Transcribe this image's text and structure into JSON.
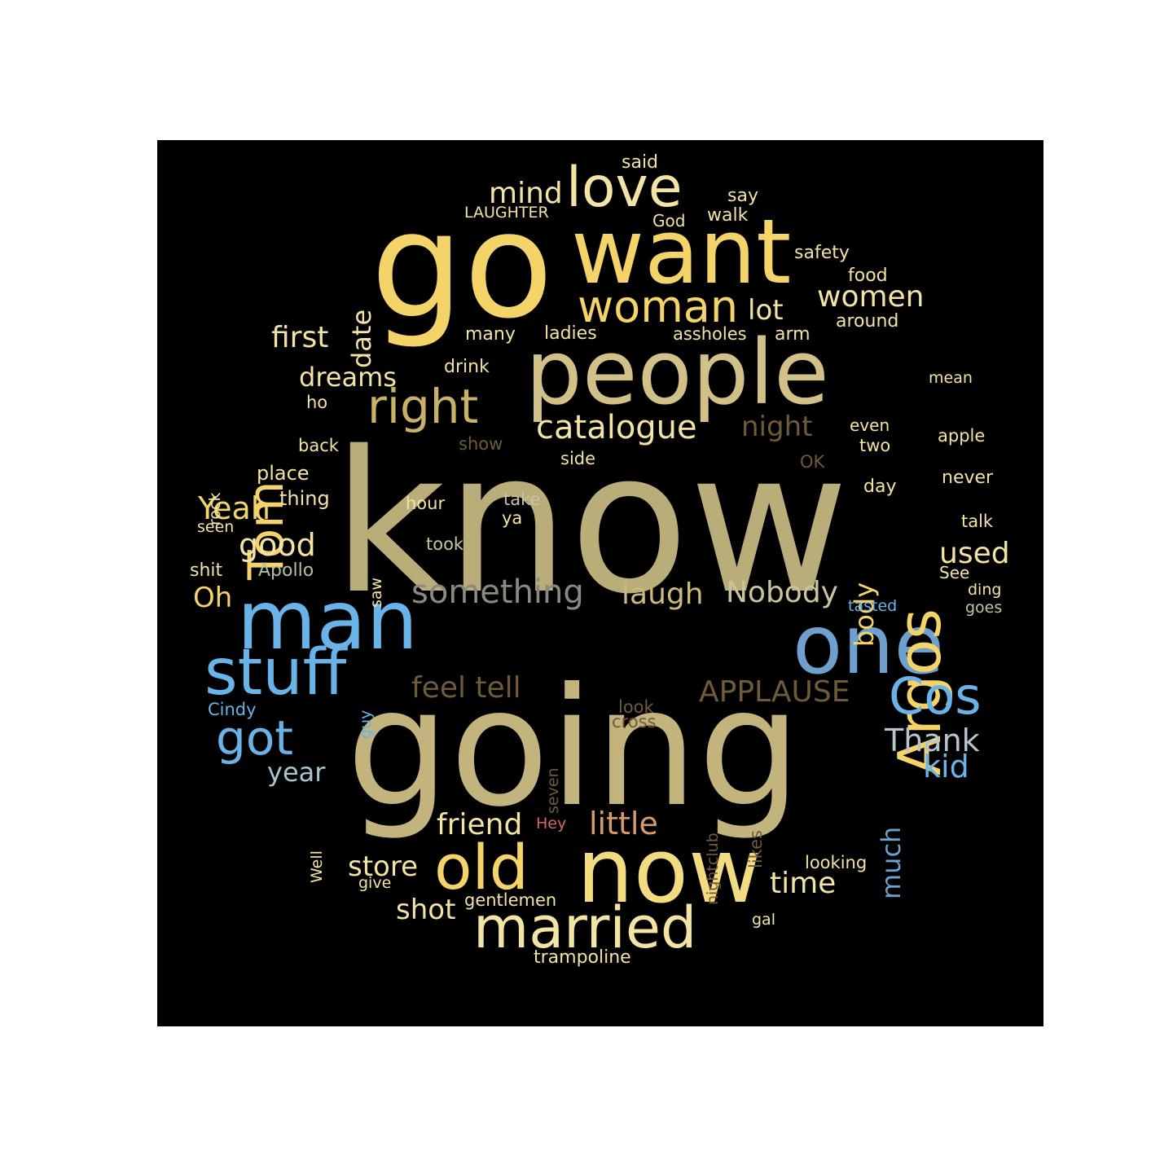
{
  "colors": {
    "background": "#000000",
    "page": "#ffffff",
    "gold": "#f4d469",
    "khaki": "#b9ad7a",
    "tan": "#cdb97c",
    "cream": "#f3e3a5",
    "blue": "#6ab3e8",
    "steel_blue": "#6f9fcc",
    "brown": "#6f5a3a",
    "salmon": "#d99a6a",
    "grey": "#8a8a80",
    "sage": "#b0c0a0",
    "red": "#d06a6a"
  },
  "words": [
    "know",
    "going",
    "go",
    "people",
    "want",
    "now",
    "man",
    "one",
    "stuff",
    "married",
    "old",
    "love",
    "Argos",
    "woman",
    "Tom",
    "right",
    "Cos",
    "catalogue",
    "something",
    "got",
    "women",
    "laugh",
    "Nobody",
    "APPLAUSE",
    "feel tell",
    "first",
    "lot",
    "mind",
    "Thank",
    "dreams",
    "kid",
    "night",
    "good",
    "Yeah",
    "little",
    "used",
    "friend",
    "date",
    "year",
    "time",
    "store",
    "shot",
    "much",
    "body",
    "Oh",
    "place",
    "thing",
    "back",
    "ho",
    "said",
    "say",
    "walk",
    "God",
    "LAUGHTER",
    "safety",
    "food",
    "around",
    "arm",
    "assholes",
    "ladies",
    "many",
    "drink",
    "mean",
    "even",
    "two",
    "apple",
    "never",
    "day",
    "talk",
    "See",
    "ding",
    "goes",
    "tasted",
    "Cindy",
    "shit",
    "Apollo",
    "seen",
    "rock",
    "hour",
    "take",
    "ya",
    "took",
    "side",
    "show",
    "OK",
    "guy",
    "saw",
    "seven",
    "look",
    "cross",
    "nightclub",
    "likes",
    "Hey",
    "Well",
    "looking",
    "gentlemen",
    "give",
    "gal",
    "trampoline"
  ]
}
